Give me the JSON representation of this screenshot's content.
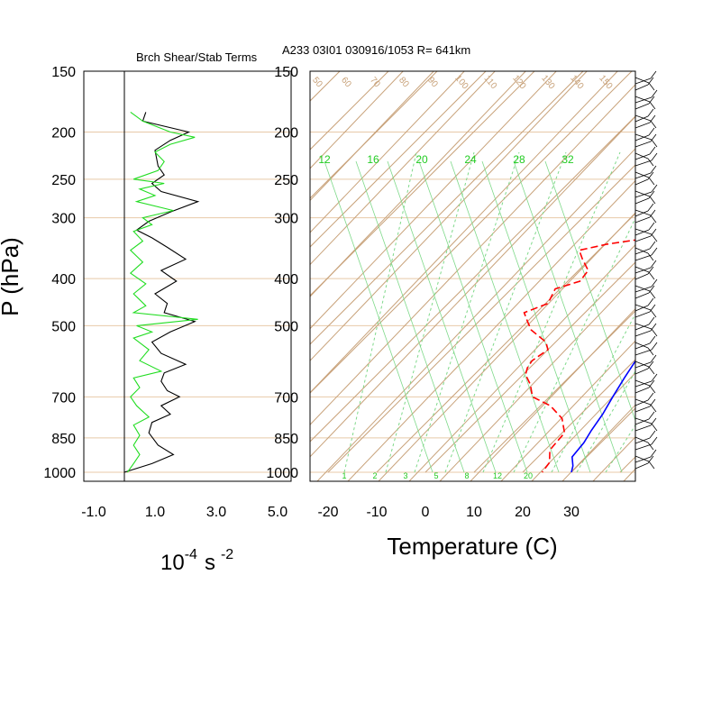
{
  "colors": {
    "isobar": "#e8c9a8",
    "skew": "#c8a27a",
    "mixing": "#7fd98a",
    "mixing_label": "#22cc22",
    "temperature": "#0000ff",
    "dewpoint": "#ff0000",
    "ri_black": "#000000",
    "ri_green": "#22dd22",
    "barbs": "#000000"
  },
  "left_panel": {
    "title": "Brch Shear/Stab Terms",
    "x_ticks": [
      "-1.0",
      "1.0",
      "3.0",
      "5.0"
    ],
    "x_units_base": "10",
    "x_units_exp": "-4",
    "x_units_s": "s",
    "x_units_s_exp": "-2"
  },
  "right_panel": {
    "title": "A233 03I01 030916/1053 R= 641km",
    "x_title": "Temperature (C)",
    "x_ticks": [
      "-20",
      "-10",
      "0",
      "10",
      "20",
      "30"
    ]
  },
  "y_axis": {
    "title": "P (hPa)",
    "ticks": [
      "150",
      "200",
      "250",
      "300",
      "400",
      "500",
      "700",
      "850",
      "1000"
    ]
  },
  "chart_data": {
    "type": "line",
    "title": "A233 03I01 030916/1053 R= 641km",
    "ylabel": "P (hPa)",
    "y_ticks": [
      150,
      200,
      250,
      300,
      400,
      500,
      700,
      850,
      1000
    ],
    "ylim": [
      1000,
      150
    ],
    "xlabel": "Temperature (C)",
    "x_ticks": [
      -20,
      -10,
      0,
      10,
      20,
      30
    ],
    "mixing_ratio_labels": [
      "12",
      "16",
      "20",
      "24",
      "28",
      "32"
    ],
    "mixing_ratio_bottom_labels": [
      "1",
      "2",
      "3",
      "5",
      "8",
      "12",
      "20"
    ],
    "theta_labels": [
      "50",
      "60",
      "70",
      "80",
      "90",
      "100",
      "110",
      "120",
      "130",
      "140",
      "150"
    ],
    "series": [
      {
        "name": "",
        "color": "#0000ff",
        "style": "solid",
        "points": [
          [
            173,
            0
          ],
          [
            195,
            2.5
          ],
          [
            223,
            5.5
          ],
          [
            255,
            7.5
          ],
          [
            290,
            8.5
          ],
          [
            333,
            11.5
          ],
          [
            370,
            14.5
          ],
          [
            420,
            17.0
          ],
          [
            480,
            18.0
          ],
          [
            500,
            17.5
          ],
          [
            560,
            19.5
          ],
          [
            640,
            21.5
          ],
          [
            700,
            23.0
          ],
          [
            760,
            24.5
          ],
          [
            820,
            25.5
          ],
          [
            870,
            26.5
          ],
          [
            930,
            27.0
          ],
          [
            970,
            29.0
          ],
          [
            1000,
            30.0
          ]
        ]
      },
      {
        "name": "",
        "color": "#ff0000",
        "style": "dashed",
        "points": [
          [
            188,
            -17.0
          ],
          [
            203,
            -12.5
          ],
          [
            215,
            -4.5
          ],
          [
            235,
            -1.0
          ],
          [
            260,
            0.5
          ],
          [
            278,
            -2.0
          ],
          [
            295,
            -7.0
          ],
          [
            310,
            -3.0
          ],
          [
            322,
            -4.0
          ],
          [
            330,
            -2.0
          ],
          [
            340,
            -9.5
          ],
          [
            350,
            -14.0
          ],
          [
            365,
            -11.5
          ],
          [
            385,
            -8.0
          ],
          [
            405,
            -7.5
          ],
          [
            420,
            -11.0
          ],
          [
            450,
            -9.5
          ],
          [
            470,
            -12.5
          ],
          [
            490,
            -10.0
          ],
          [
            510,
            -7.5
          ],
          [
            540,
            -2.0
          ],
          [
            560,
            0.0
          ],
          [
            590,
            -1.0
          ],
          [
            610,
            -0.5
          ],
          [
            630,
            0.5
          ],
          [
            660,
            3.5
          ],
          [
            700,
            6.5
          ],
          [
            730,
            12.0
          ],
          [
            775,
            17.0
          ],
          [
            830,
            20.5
          ],
          [
            900,
            21.0
          ],
          [
            955,
            23.5
          ],
          [
            1000,
            24.0
          ]
        ]
      }
    ],
    "shear_stability": {
      "xlim": [
        -1.0,
        5.0
      ],
      "x_ticks": [
        -1.0,
        1.0,
        3.0,
        5.0
      ],
      "series": [
        {
          "name": "",
          "color": "#000000",
          "points": [
            [
              182,
              0.7
            ],
            [
              190,
              0.6
            ],
            [
              200,
              2.1
            ],
            [
              208,
              1.5
            ],
            [
              218,
              1.0
            ],
            [
              235,
              1.1
            ],
            [
              245,
              1.3
            ],
            [
              255,
              0.9
            ],
            [
              265,
              1.2
            ],
            [
              278,
              2.4
            ],
            [
              292,
              1.5
            ],
            [
              305,
              0.8
            ],
            [
              318,
              0.4
            ],
            [
              330,
              0.9
            ],
            [
              345,
              1.4
            ],
            [
              365,
              2.0
            ],
            [
              385,
              1.2
            ],
            [
              405,
              1.7
            ],
            [
              430,
              1.0
            ],
            [
              450,
              1.4
            ],
            [
              470,
              1.3
            ],
            [
              490,
              2.3
            ],
            [
              515,
              1.5
            ],
            [
              540,
              0.9
            ],
            [
              570,
              1.2
            ],
            [
              600,
              2.0
            ],
            [
              625,
              1.3
            ],
            [
              650,
              1.2
            ],
            [
              680,
              1.4
            ],
            [
              700,
              1.8
            ],
            [
              730,
              1.2
            ],
            [
              760,
              1.5
            ],
            [
              790,
              0.9
            ],
            [
              830,
              0.8
            ],
            [
              880,
              1.1
            ],
            [
              920,
              1.6
            ],
            [
              960,
              0.9
            ],
            [
              1000,
              0.0
            ]
          ]
        },
        {
          "name": "",
          "color": "#22dd22",
          "points": [
            [
              182,
              0.2
            ],
            [
              190,
              0.6
            ],
            [
              200,
              1.5
            ],
            [
              205,
              2.3
            ],
            [
              212,
              1.5
            ],
            [
              220,
              1.0
            ],
            [
              230,
              1.3
            ],
            [
              240,
              1.1
            ],
            [
              250,
              0.3
            ],
            [
              255,
              1.3
            ],
            [
              262,
              0.5
            ],
            [
              270,
              1.0
            ],
            [
              278,
              0.4
            ],
            [
              290,
              1.6
            ],
            [
              300,
              0.6
            ],
            [
              310,
              0.9
            ],
            [
              320,
              0.3
            ],
            [
              335,
              0.6
            ],
            [
              350,
              0.2
            ],
            [
              370,
              0.6
            ],
            [
              390,
              0.2
            ],
            [
              410,
              0.7
            ],
            [
              430,
              0.3
            ],
            [
              455,
              0.7
            ],
            [
              470,
              0.3
            ],
            [
              485,
              2.4
            ],
            [
              500,
              0.4
            ],
            [
              515,
              0.9
            ],
            [
              530,
              0.3
            ],
            [
              560,
              0.8
            ],
            [
              590,
              0.5
            ],
            [
              620,
              1.2
            ],
            [
              640,
              0.3
            ],
            [
              670,
              0.5
            ],
            [
              700,
              0.2
            ],
            [
              730,
              0.4
            ],
            [
              770,
              0.8
            ],
            [
              800,
              0.3
            ],
            [
              840,
              0.5
            ],
            [
              880,
              0.3
            ],
            [
              920,
              0.5
            ],
            [
              960,
              0.3
            ],
            [
              1000,
              0.1
            ]
          ]
        }
      ]
    }
  }
}
